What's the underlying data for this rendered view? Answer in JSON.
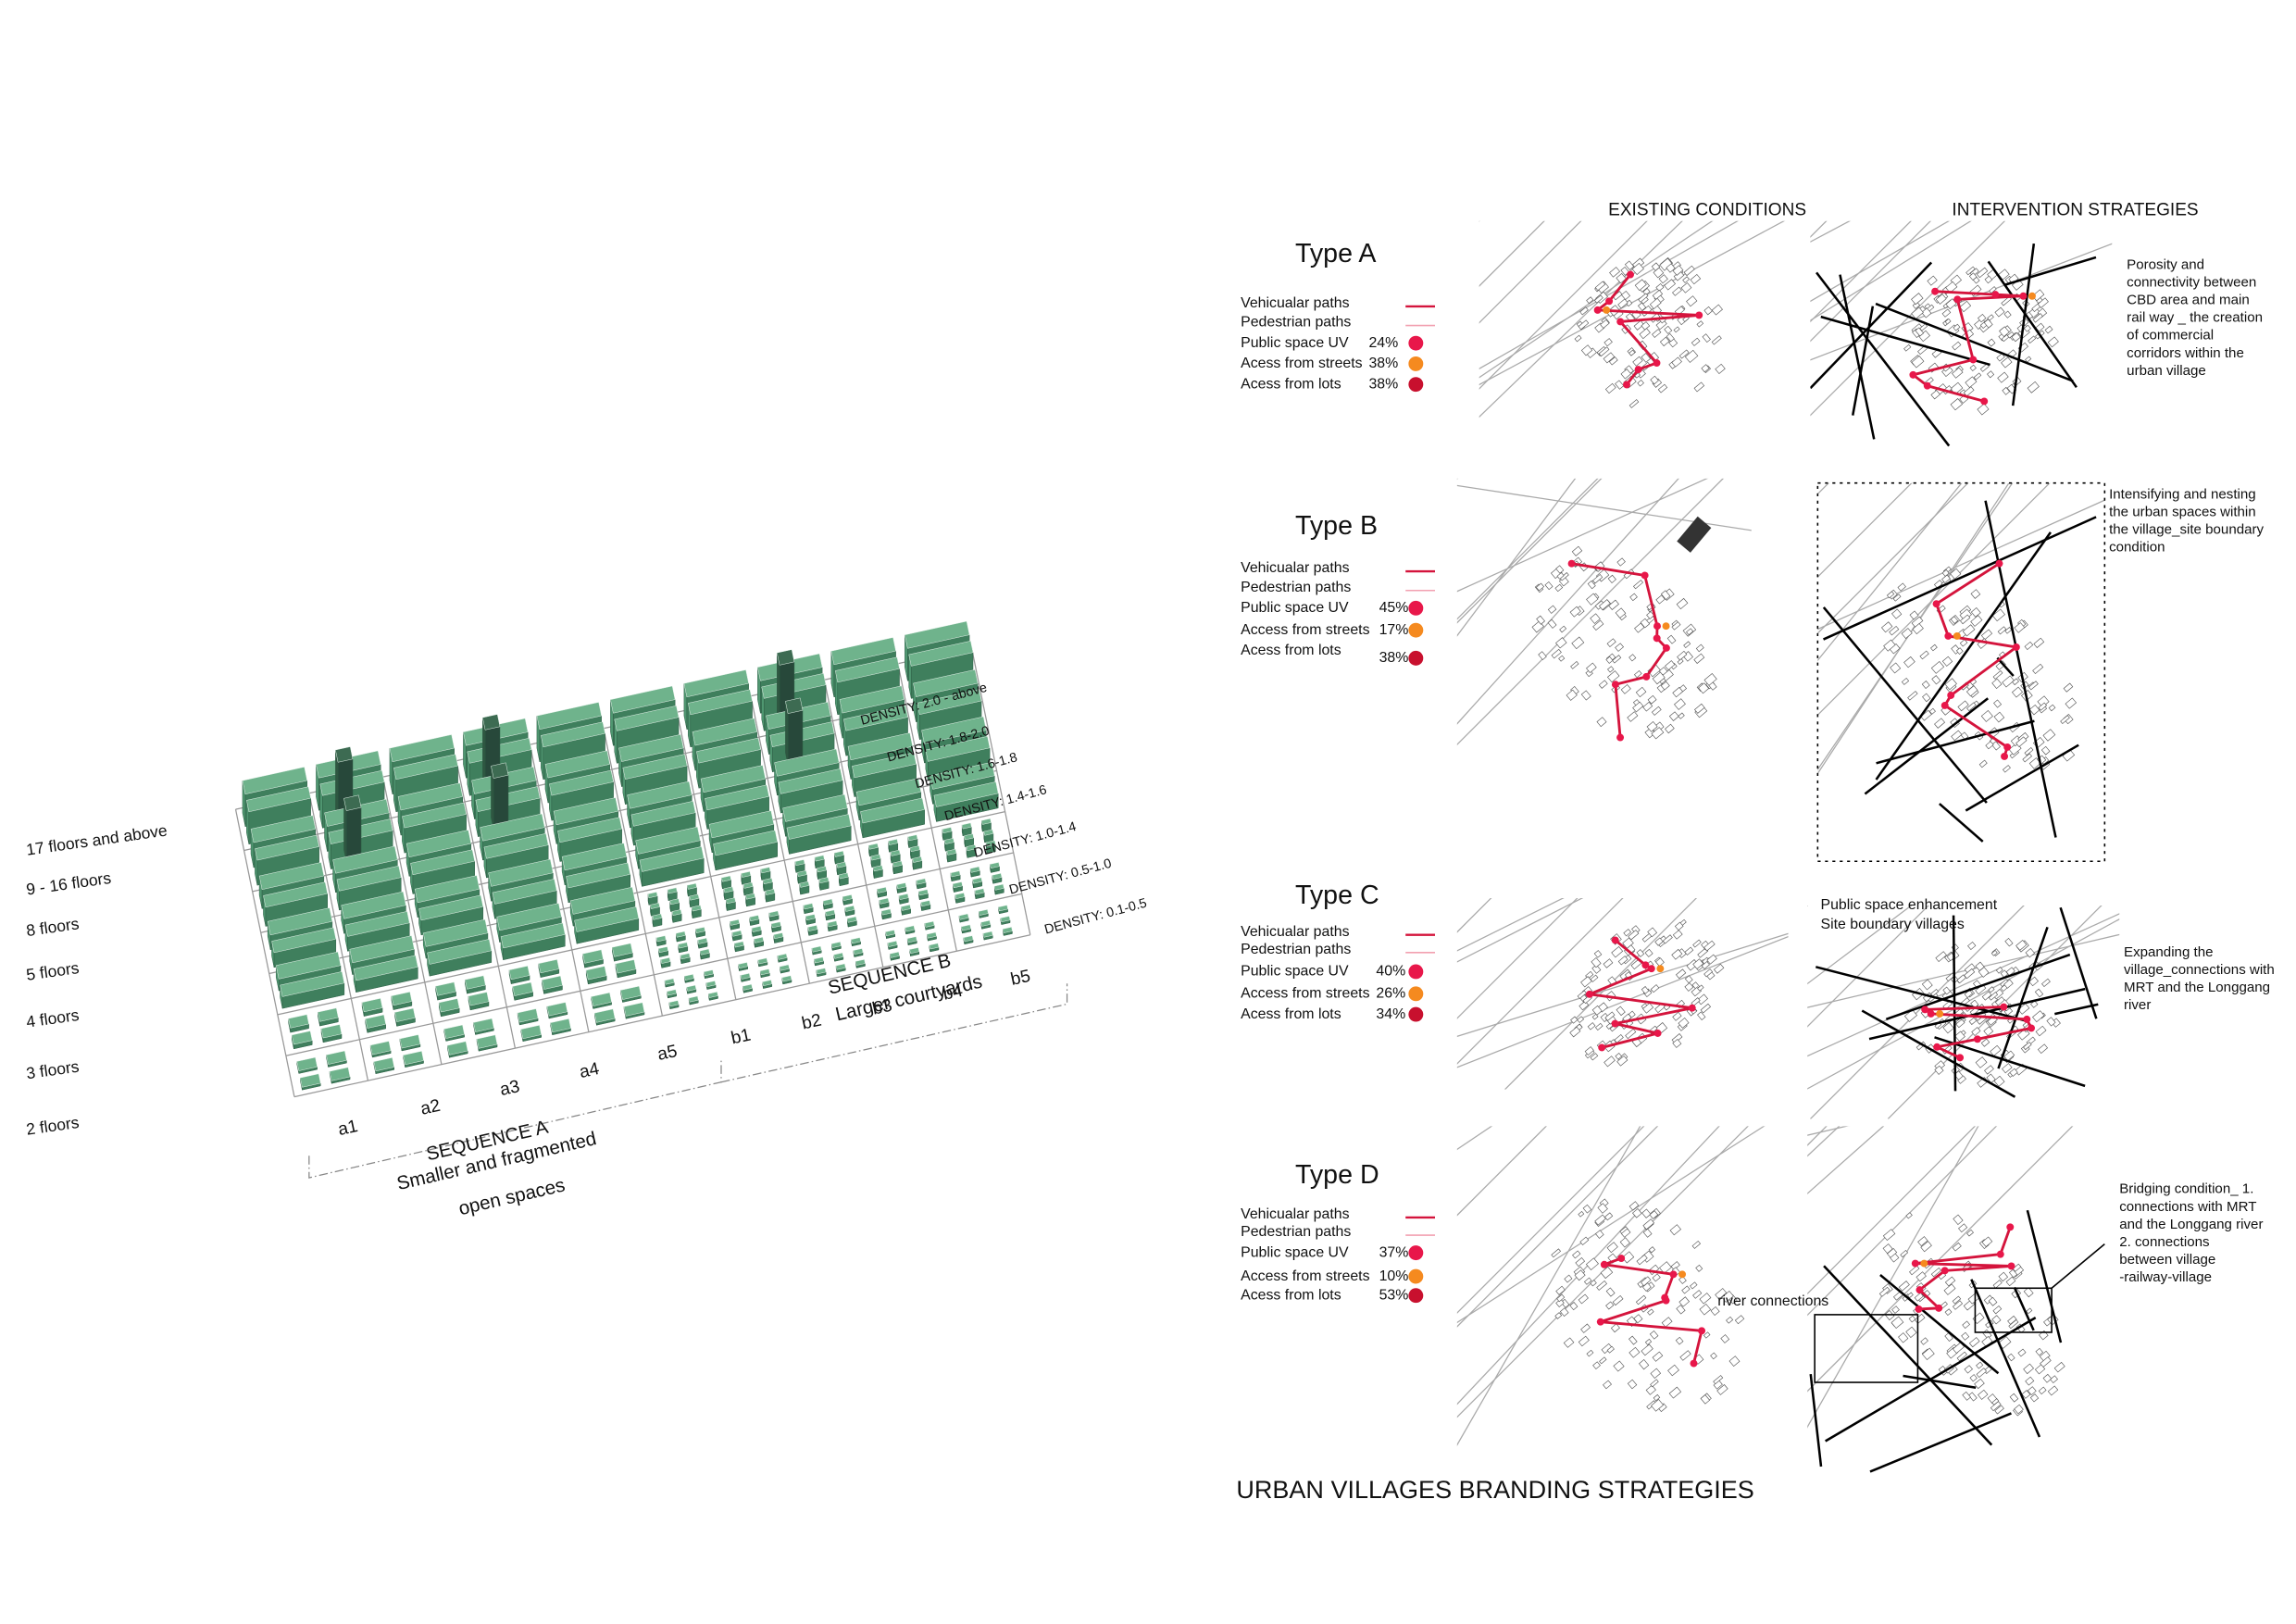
{
  "left": {
    "floors": [
      "17 floors and above",
      "9 - 16 floors",
      "8 floors",
      "5 floors",
      "4 floors",
      "3 floors",
      "2 floors"
    ],
    "densities": [
      "DENSITY: 2.0 - above",
      "DENSITY: 1.8-2.0",
      "DENSITY: 1.6-1.8",
      "DENSITY: 1.4-1.6",
      "DENSITY: 1.0-1.4",
      "DENSITY: 0.5-1.0",
      "DENSITY: 0.1-0.5"
    ],
    "cells": [
      "a1",
      "a2",
      "a3",
      "a4",
      "a5",
      "b1",
      "b2",
      "b3",
      "b4",
      "b5"
    ],
    "sequence_a": [
      "SEQUENCE A",
      "Smaller and fragmented",
      "open spaces"
    ],
    "sequence_b": [
      "SEQUENCE B",
      "Larger courtyards"
    ]
  },
  "right": {
    "headers": [
      "EXISTING CONDITIONS",
      "INTERVENTION STRATEGIES"
    ],
    "types": [
      {
        "title": "Type A",
        "legend": [
          "Vehicualar paths",
          "Pedestrian paths",
          "Public space UV",
          "Acess from  streets",
          "Acess from  lots"
        ],
        "shares": [
          "24%",
          "38%",
          "38%"
        ],
        "notes": [
          "Porosity and",
          "connectivity between",
          "CBD area  and main",
          "rail way _ the creation",
          "of  commercial",
          "corridors within the",
          "urban village"
        ]
      },
      {
        "title": "Type B",
        "legend": [
          "Vehicualar paths",
          "Pedestrian paths",
          "Public space UV",
          "Access from  streets",
          "Acess from  lots"
        ],
        "shares": [
          "45%",
          "17%",
          "38%"
        ],
        "notes": [
          "Intensifying  and nesting",
          "the urban spaces  within",
          "the village_site boundary",
          "condition"
        ]
      },
      {
        "title": "Type C",
        "legend": [
          "Vehicualar paths",
          "Pedestrian paths",
          "Public space UV",
          "Access from  streets",
          "Acess from  lots"
        ],
        "shares": [
          "40%",
          "26%",
          "34%"
        ],
        "notes": [
          "Expanding the",
          "village_connections with",
          "MRT  and  the Longgang",
          "river"
        ],
        "subnotes": [
          "Public space enhancement",
          "Site boundary villages"
        ]
      },
      {
        "title": "Type D",
        "legend": [
          "Vehicualar paths",
          "Pedestrian paths",
          "Public space UV",
          "Access from  streets",
          "Acess from  lots"
        ],
        "shares": [
          "37%",
          "10%",
          "53%"
        ],
        "notes": [
          "Bridging condition_ 1.",
          "connections with  MRT",
          "and  the Longgang river",
          "2. connections",
          "between village",
          "-railway-village"
        ],
        "subnotes": [
          "river connections"
        ]
      }
    ],
    "title": "URBAN VILLAGES BRANDING STRATEGIES"
  }
}
